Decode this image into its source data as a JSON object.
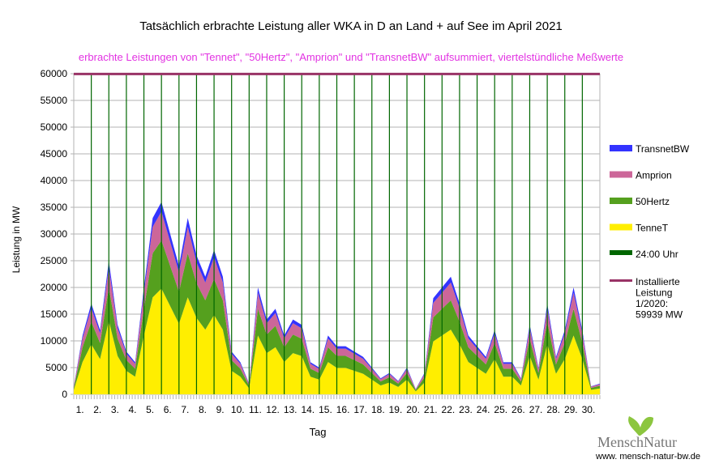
{
  "chart_data": {
    "type": "area",
    "stacked": true,
    "title": "Tatsächlich erbrachte Leistung aller WKA in D an Land + auf See im April 2021",
    "subtitle": "erbrachte Leistungen von \"Tennet\", \"50Hertz\", \"Amprion\" und \"TransnetBW\" aufsummiert, viertelstündliche Meßwerte",
    "xlabel": "Tag",
    "ylabel": "Leistung in MW",
    "ylim": [
      0,
      60000
    ],
    "xlim": [
      0,
      30
    ],
    "yticks": [
      "0",
      "5000",
      "10000",
      "15000",
      "20000",
      "25000",
      "30000",
      "35000",
      "40000",
      "45000",
      "50000",
      "55000",
      "60000"
    ],
    "xtick_labels": [
      "1.",
      "2.",
      "3.",
      "4.",
      "5.",
      "6.",
      "7.",
      "8.",
      "9.",
      "10.",
      "11.",
      "12.",
      "13.",
      "14.",
      "15.",
      "16.",
      "17.",
      "18.",
      "19.",
      "20.",
      "21.",
      "22.",
      "23.",
      "24.",
      "25.",
      "26.",
      "27.",
      "28.",
      "29.",
      "30."
    ],
    "grid": true,
    "legend_position": "right",
    "x_step_days": 0.5,
    "series": [
      {
        "name": "TenneT",
        "color": "#ffee00",
        "values": [
          830,
          6050,
          9350,
          6600,
          13750,
          7150,
          4400,
          3300,
          11000,
          18150,
          19800,
          16500,
          13200,
          18150,
          14300,
          12100,
          14850,
          12100,
          4400,
          3300,
          1100,
          11000,
          7700,
          8800,
          6050,
          7700,
          7150,
          3300,
          2750,
          6050,
          4950,
          4950,
          4400,
          3850,
          2750,
          1650,
          2200,
          1380,
          2750,
          550,
          2200,
          9900,
          11000,
          12100,
          9350,
          6050,
          4950,
          3850,
          6600,
          3300,
          3300,
          1650,
          7150,
          2750,
          9350,
          3850,
          6600,
          11000,
          6600,
          830,
          1100
        ]
      },
      {
        "name": "50Hertz",
        "color": "#55a01e",
        "values": [
          380,
          2750,
          4250,
          3000,
          6250,
          3250,
          2000,
          1500,
          5000,
          8250,
          9000,
          7500,
          6000,
          8250,
          6500,
          5500,
          6750,
          5500,
          2000,
          1500,
          500,
          5000,
          3500,
          4000,
          2750,
          3500,
          3250,
          1500,
          1250,
          2750,
          2250,
          2250,
          2000,
          1750,
          1250,
          750,
          1000,
          620,
          1250,
          250,
          1000,
          4500,
          5000,
          5500,
          4250,
          2750,
          2250,
          1750,
          3000,
          1500,
          1500,
          750,
          3250,
          1250,
          4250,
          1750,
          3000,
          5000,
          3000,
          380,
          500
        ]
      },
      {
        "name": "Amprion",
        "color": "#cc6699",
        "values": [
          220,
          1650,
          2550,
          1800,
          3750,
          1950,
          1200,
          900,
          3000,
          4950,
          5400,
          4500,
          3600,
          4950,
          3900,
          3300,
          4050,
          3300,
          1200,
          900,
          300,
          3000,
          2100,
          2400,
          1650,
          2100,
          1950,
          900,
          750,
          1650,
          1350,
          1350,
          1200,
          1050,
          750,
          450,
          600,
          380,
          750,
          150,
          600,
          2700,
          3000,
          3300,
          2550,
          1650,
          1350,
          1050,
          1800,
          900,
          900,
          450,
          1950,
          750,
          2550,
          1050,
          1800,
          3000,
          1800,
          220,
          300
        ]
      },
      {
        "name": "TransnetBW",
        "color": "#3333ff",
        "values": [
          70,
          550,
          850,
          600,
          1250,
          650,
          400,
          300,
          1000,
          1650,
          1800,
          1500,
          1200,
          1650,
          1300,
          1100,
          1350,
          1100,
          400,
          300,
          100,
          1000,
          700,
          800,
          550,
          700,
          650,
          300,
          250,
          550,
          450,
          450,
          400,
          350,
          250,
          150,
          200,
          120,
          250,
          50,
          200,
          900,
          1000,
          1100,
          850,
          550,
          450,
          350,
          600,
          300,
          300,
          150,
          650,
          250,
          850,
          350,
          600,
          1000,
          600,
          70,
          100
        ]
      }
    ],
    "reference_lines": {
      "midnight": {
        "label": "24:00 Uhr",
        "color": "#006600"
      },
      "installed": {
        "label_lines": [
          "Installierte",
          "Leistung",
          "1/2020:",
          "59939 MW"
        ],
        "value": 59939,
        "color": "#993366"
      }
    }
  },
  "logo": {
    "name": "MenschNatur",
    "url": "www. mensch-natur-bw.de",
    "leaf_color": "#8cc63f"
  }
}
